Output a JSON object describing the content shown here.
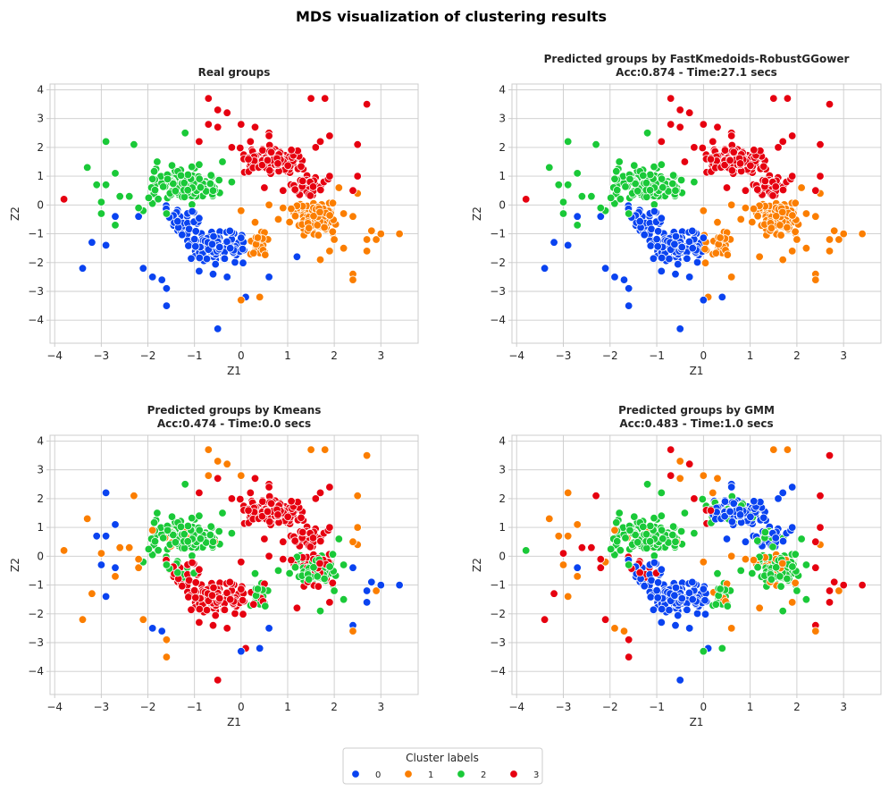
{
  "suptitle": "MDS visualization of clustering results",
  "colors": {
    "0": "#0a43f0",
    "1": "#fb7e00",
    "2": "#1ac938",
    "3": "#e60010",
    "grid": "#cccccc",
    "axis": "#cccccc",
    "text": "#262626"
  },
  "legend": {
    "title": "Cluster labels",
    "labels": [
      "0",
      "1",
      "2",
      "3"
    ],
    "placement": "bottom-center"
  },
  "chart_data": [
    {
      "type": "scatter",
      "title": "Real groups",
      "xlabel": "Z1",
      "ylabel": "Z2",
      "xlim": [
        -4.1,
        3.8
      ],
      "ylim": [
        -4.8,
        4.2
      ],
      "xticks": [
        "−4",
        "−3",
        "−2",
        "−1",
        "0",
        "1",
        "2",
        "3"
      ],
      "yticks": [
        "−4",
        "−3",
        "−2",
        "−1",
        "0",
        "1",
        "2",
        "3",
        "4"
      ],
      "grid": true,
      "mode": "real"
    },
    {
      "type": "scatter",
      "title": "Predicted groups by FastKmedoids-RobustGGower\nAcc:0.874 - Time:27.1 secs",
      "xlabel": "Z1",
      "ylabel": "Z2",
      "xlim": [
        -4.1,
        3.8
      ],
      "ylim": [
        -4.8,
        4.2
      ],
      "xticks": [
        "−4",
        "−3",
        "−2",
        "−1",
        "0",
        "1",
        "2",
        "3"
      ],
      "yticks": [
        "−4",
        "−3",
        "−2",
        "−1",
        "0",
        "1",
        "2",
        "3",
        "4"
      ],
      "grid": true,
      "mode": "kmedoids"
    },
    {
      "type": "scatter",
      "title": "Predicted groups by Kmeans\nAcc:0.474 - Time:0.0 secs",
      "xlabel": "Z1",
      "ylabel": "Z2",
      "xlim": [
        -4.1,
        3.8
      ],
      "ylim": [
        -4.8,
        4.2
      ],
      "xticks": [
        "−4",
        "−3",
        "−2",
        "−1",
        "0",
        "1",
        "2",
        "3"
      ],
      "yticks": [
        "−4",
        "−3",
        "−2",
        "−1",
        "0",
        "1",
        "2",
        "3",
        "4"
      ],
      "grid": true,
      "mode": "kmeans"
    },
    {
      "type": "scatter",
      "title": "Predicted groups by GMM\nAcc:0.483 - Time:1.0 secs",
      "xlabel": "Z1",
      "ylabel": "Z2",
      "xlim": [
        -4.1,
        3.8
      ],
      "ylim": [
        -4.8,
        4.2
      ],
      "xticks": [
        "−4",
        "−3",
        "−2",
        "−1",
        "0",
        "1",
        "2",
        "3"
      ],
      "yticks": [
        "−4",
        "−3",
        "−2",
        "−1",
        "0",
        "1",
        "2",
        "3",
        "4"
      ],
      "grid": true,
      "mode": "gmm"
    }
  ],
  "points": {
    "cores": [
      {
        "label": 3,
        "x": [
          -0.1,
          1.4
        ],
        "y": [
          1.0,
          2.1
        ],
        "n": 150
      },
      {
        "label": 3,
        "x": [
          1.0,
          1.9
        ],
        "y": [
          0.3,
          1.1
        ],
        "n": 35
      },
      {
        "label": 2,
        "x": [
          -2.0,
          -0.4
        ],
        "y": [
          -0.1,
          1.4
        ],
        "n": 110
      },
      {
        "label": 0,
        "x": [
          -1.8,
          -0.8
        ],
        "y": [
          -1.1,
          0.1
        ],
        "n": 45
      },
      {
        "label": 0,
        "x": [
          -1.3,
          0.2
        ],
        "y": [
          -2.1,
          -0.8
        ],
        "n": 110
      },
      {
        "label": 1,
        "x": [
          1.0,
          2.1
        ],
        "y": [
          -1.2,
          0.2
        ],
        "n": 110
      },
      {
        "label": 1,
        "x": [
          0.1,
          0.7
        ],
        "y": [
          -2.0,
          -0.7
        ],
        "n": 25
      }
    ],
    "outliers": [
      {
        "label": 0,
        "xy": [
          [
            -3.4,
            -2.2
          ],
          [
            -3.2,
            -1.3
          ],
          [
            -2.9,
            -1.4
          ],
          [
            -2.7,
            -0.4
          ],
          [
            -2.7,
            -0.7
          ],
          [
            -2.1,
            -2.2
          ],
          [
            -1.9,
            -2.5
          ],
          [
            -1.7,
            -2.6
          ],
          [
            -1.6,
            -2.9
          ],
          [
            -1.6,
            -3.5
          ],
          [
            -0.5,
            -4.3
          ],
          [
            -0.3,
            -2.5
          ],
          [
            0.6,
            -2.5
          ],
          [
            0.1,
            -3.2
          ],
          [
            1.2,
            -1.8
          ],
          [
            -2.2,
            -0.4
          ],
          [
            -0.9,
            -2.3
          ],
          [
            -0.6,
            -2.4
          ]
        ]
      },
      {
        "label": 1,
        "xy": [
          [
            0.0,
            -3.3
          ],
          [
            0.4,
            -3.2
          ],
          [
            2.4,
            -2.4
          ],
          [
            2.4,
            -2.6
          ],
          [
            2.7,
            -1.6
          ],
          [
            2.7,
            -1.2
          ],
          [
            2.9,
            -1.2
          ],
          [
            3.0,
            -1.0
          ],
          [
            3.4,
            -1.0
          ],
          [
            2.8,
            -0.9
          ],
          [
            2.2,
            -1.5
          ],
          [
            2.0,
            -1.2
          ],
          [
            1.9,
            -1.6
          ],
          [
            1.7,
            -1.9
          ],
          [
            2.4,
            -0.4
          ],
          [
            2.5,
            0.4
          ],
          [
            2.1,
            0.6
          ],
          [
            0.3,
            -0.6
          ],
          [
            0.0,
            -0.2
          ],
          [
            0.8,
            -0.5
          ],
          [
            0.9,
            -0.1
          ],
          [
            2.2,
            -0.3
          ],
          [
            0.6,
            0.0
          ]
        ]
      },
      {
        "label": 2,
        "xy": [
          [
            -3.3,
            1.3
          ],
          [
            -2.9,
            2.2
          ],
          [
            -2.9,
            0.7
          ],
          [
            -3.1,
            0.7
          ],
          [
            -3.0,
            0.1
          ],
          [
            -3.0,
            -0.3
          ],
          [
            -2.7,
            1.1
          ],
          [
            -2.6,
            0.3
          ],
          [
            -2.7,
            -0.7
          ],
          [
            -2.3,
            2.1
          ],
          [
            -2.4,
            0.3
          ],
          [
            -2.1,
            -0.2
          ],
          [
            -1.9,
            0.9
          ],
          [
            -1.8,
            1.5
          ],
          [
            -1.2,
            2.5
          ],
          [
            -0.9,
            1.4
          ],
          [
            -0.4,
            1.5
          ],
          [
            -0.2,
            0.8
          ],
          [
            -0.6,
            0.5
          ],
          [
            -1.6,
            -0.3
          ],
          [
            -2.2,
            -0.1
          ]
        ]
      },
      {
        "label": 3,
        "xy": [
          [
            -3.8,
            0.2
          ],
          [
            -0.7,
            3.7
          ],
          [
            -0.5,
            3.3
          ],
          [
            -0.3,
            3.2
          ],
          [
            -0.7,
            2.8
          ],
          [
            -0.5,
            2.7
          ],
          [
            -0.9,
            2.2
          ],
          [
            0.0,
            2.8
          ],
          [
            0.3,
            2.7
          ],
          [
            0.2,
            2.2
          ],
          [
            0.6,
            2.5
          ],
          [
            1.5,
            3.7
          ],
          [
            1.8,
            3.7
          ],
          [
            1.9,
            2.4
          ],
          [
            1.7,
            2.2
          ],
          [
            1.6,
            2.0
          ],
          [
            2.5,
            2.1
          ],
          [
            2.7,
            3.5
          ],
          [
            2.5,
            1.0
          ],
          [
            2.4,
            0.5
          ],
          [
            1.9,
            1.0
          ],
          [
            0.9,
            0.5
          ],
          [
            0.5,
            0.6
          ],
          [
            0.6,
            2.4
          ],
          [
            -0.2,
            2.0
          ]
        ]
      }
    ]
  }
}
